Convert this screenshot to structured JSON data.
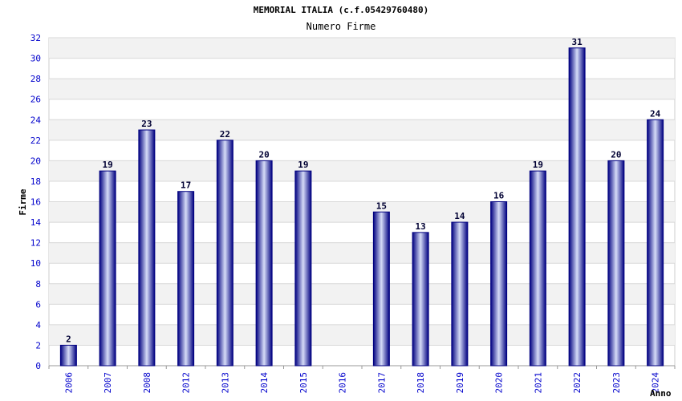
{
  "chart_data": {
    "type": "bar",
    "title": "MEMORIAL ITALIA (c.f.05429760480)",
    "subtitle": "Numero Firme",
    "ylabel": "Firme",
    "xlabel": "Anno",
    "ylim": [
      0,
      32
    ],
    "yticks": [
      0,
      2,
      4,
      6,
      8,
      10,
      12,
      14,
      16,
      18,
      20,
      22,
      24,
      26,
      28,
      30,
      32
    ],
    "categories": [
      "2006",
      "2007",
      "2008",
      "2012",
      "2013",
      "2014",
      "2015",
      "2016",
      "2017",
      "2018",
      "2019",
      "2020",
      "2021",
      "2022",
      "2023",
      "2024"
    ],
    "values": [
      2,
      19,
      23,
      17,
      22,
      20,
      19,
      null,
      15,
      13,
      14,
      16,
      19,
      31,
      20,
      24
    ],
    "grid": true,
    "colors": {
      "bar_dark": "#000080",
      "bar_light": "#d6dcf7",
      "tick": "#0000cc",
      "band": "#f2f2f2"
    }
  }
}
